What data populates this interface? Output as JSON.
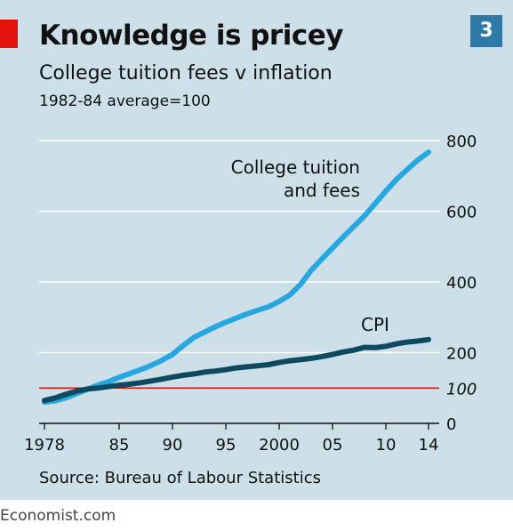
{
  "header": {
    "title": "Knowledge is pricey",
    "subtitle": "College tuition fees v inflation",
    "note": "1982-84 average=100",
    "badge": "3"
  },
  "footer": {
    "source": "Source: Bureau of Labour Statistics",
    "brand": "Economist.com"
  },
  "colors": {
    "background": "#cddfe8",
    "tuition": "#27a7e0",
    "cpi": "#0d4a60",
    "reference": "#e3120b",
    "grid": "#ffffff"
  },
  "chart_data": {
    "type": "line",
    "ylim": [
      0,
      800
    ],
    "xlim": [
      1977.5,
      2015
    ],
    "y_ticks": [
      {
        "value": 0,
        "label": "0"
      },
      {
        "value": 200,
        "label": "200"
      },
      {
        "value": 400,
        "label": "400"
      },
      {
        "value": 600,
        "label": "600"
      },
      {
        "value": 800,
        "label": "800"
      }
    ],
    "x_ticks": [
      {
        "value": 1978,
        "label": "1978"
      },
      {
        "value": 1985,
        "label": "85"
      },
      {
        "value": 1990,
        "label": "90"
      },
      {
        "value": 1995,
        "label": "95"
      },
      {
        "value": 2000,
        "label": "2000"
      },
      {
        "value": 2005,
        "label": "05"
      },
      {
        "value": 2010,
        "label": "10"
      },
      {
        "value": 2014,
        "label": "14"
      }
    ],
    "reference_line": {
      "value": 100,
      "label": "100"
    },
    "grid": true,
    "series": [
      {
        "name": "College tuition and fees",
        "label_lines": [
          "College tuition",
          "and fees"
        ],
        "color": "#27a7e0",
        "points": [
          [
            1978,
            60
          ],
          [
            1979,
            64
          ],
          [
            1980,
            72
          ],
          [
            1981,
            84
          ],
          [
            1982,
            96
          ],
          [
            1983,
            108
          ],
          [
            1984,
            118
          ],
          [
            1985,
            130
          ],
          [
            1986,
            141
          ],
          [
            1987,
            152
          ],
          [
            1988,
            164
          ],
          [
            1989,
            178
          ],
          [
            1990,
            195
          ],
          [
            1991,
            220
          ],
          [
            1992,
            243
          ],
          [
            1993,
            258
          ],
          [
            1994,
            273
          ],
          [
            1995,
            286
          ],
          [
            1996,
            298
          ],
          [
            1997,
            310
          ],
          [
            1998,
            320
          ],
          [
            1999,
            330
          ],
          [
            2000,
            345
          ],
          [
            2001,
            363
          ],
          [
            2002,
            393
          ],
          [
            2003,
            433
          ],
          [
            2004,
            465
          ],
          [
            2005,
            496
          ],
          [
            2006,
            527
          ],
          [
            2007,
            557
          ],
          [
            2008,
            587
          ],
          [
            2009,
            622
          ],
          [
            2010,
            657
          ],
          [
            2011,
            690
          ],
          [
            2012,
            718
          ],
          [
            2013,
            745
          ],
          [
            2014,
            767
          ]
        ]
      },
      {
        "name": "CPI",
        "label_lines": [
          "CPI"
        ],
        "color": "#0d4a60",
        "points": [
          [
            1978,
            65
          ],
          [
            1979,
            72
          ],
          [
            1980,
            82
          ],
          [
            1981,
            91
          ],
          [
            1982,
            97
          ],
          [
            1983,
            100
          ],
          [
            1984,
            104
          ],
          [
            1985,
            108
          ],
          [
            1986,
            111
          ],
          [
            1987,
            115
          ],
          [
            1988,
            120
          ],
          [
            1989,
            125
          ],
          [
            1990,
            131
          ],
          [
            1991,
            136
          ],
          [
            1992,
            140
          ],
          [
            1993,
            145
          ],
          [
            1994,
            148
          ],
          [
            1995,
            152
          ],
          [
            1996,
            157
          ],
          [
            1997,
            160
          ],
          [
            1998,
            163
          ],
          [
            1999,
            166
          ],
          [
            2000,
            172
          ],
          [
            2001,
            177
          ],
          [
            2002,
            180
          ],
          [
            2003,
            184
          ],
          [
            2004,
            189
          ],
          [
            2005,
            195
          ],
          [
            2006,
            202
          ],
          [
            2007,
            207
          ],
          [
            2008,
            215
          ],
          [
            2009,
            214
          ],
          [
            2010,
            218
          ],
          [
            2011,
            225
          ],
          [
            2012,
            230
          ],
          [
            2013,
            233
          ],
          [
            2014,
            237
          ]
        ]
      }
    ]
  }
}
